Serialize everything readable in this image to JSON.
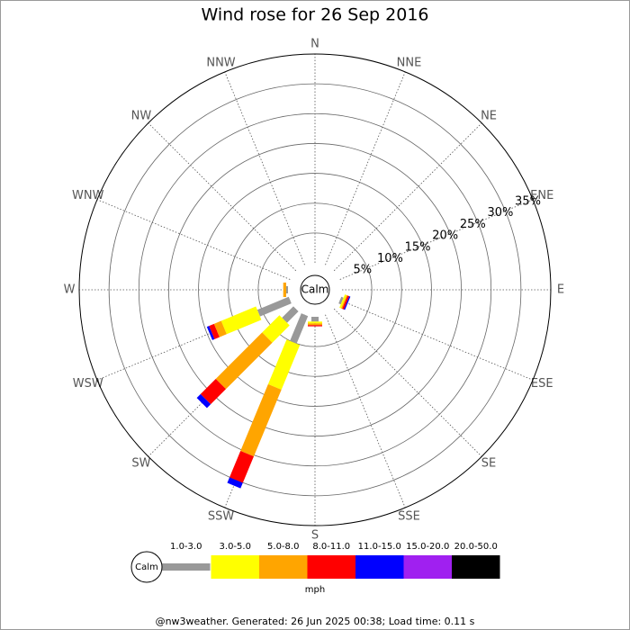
{
  "chart_data": {
    "type": "wind-rose",
    "title": "Wind rose for 26 Sep 2016",
    "directions": [
      "N",
      "NNE",
      "NE",
      "ENE",
      "E",
      "ESE",
      "SE",
      "SSE",
      "S",
      "SSW",
      "SW",
      "WSW",
      "W",
      "WNW",
      "NW",
      "NNW"
    ],
    "calm_label": "Calm",
    "rlim": [
      0,
      35
    ],
    "rticks": [
      {
        "value": 5,
        "label": "5%"
      },
      {
        "value": 10,
        "label": "10%"
      },
      {
        "value": 15,
        "label": "15%"
      },
      {
        "value": 20,
        "label": "20%"
      },
      {
        "value": 25,
        "label": "25%"
      },
      {
        "value": 30,
        "label": "30%"
      },
      {
        "value": 35,
        "label": "35%"
      }
    ],
    "series": [
      {
        "name": "1.0-3.0",
        "color": "#999999",
        "values": [
          0,
          0,
          0,
          0,
          0,
          0.4,
          0,
          0,
          0.8,
          5,
          2.7,
          5.7,
          0.3,
          0,
          0,
          0
        ]
      },
      {
        "name": "3.0-5.0",
        "color": "#ffff00",
        "values": [
          0,
          0,
          0,
          0,
          0,
          0.3,
          0,
          0,
          0.3,
          8.1,
          4.1,
          6.3,
          0,
          0,
          0,
          0
        ]
      },
      {
        "name": "5.0-8.0",
        "color": "#ffa500",
        "values": [
          0,
          0,
          0,
          0,
          0,
          0.2,
          0,
          0,
          0.3,
          12.1,
          11,
          1.3,
          0.5,
          0,
          0,
          0
        ]
      },
      {
        "name": "8.0-11.0",
        "color": "#ff0000",
        "values": [
          0,
          0,
          0,
          0,
          0,
          0.3,
          0,
          0,
          0.2,
          4.8,
          3.6,
          0.9,
          0,
          0,
          0,
          0
        ]
      },
      {
        "name": "11.0-15.0",
        "color": "#0000ff",
        "values": [
          0,
          0,
          0,
          0,
          0,
          0.2,
          0,
          0,
          0,
          1,
          0.9,
          0.4,
          0,
          0,
          0,
          0
        ]
      },
      {
        "name": "15.0-20.0",
        "color": "#a020f0",
        "values": [
          0,
          0,
          0,
          0,
          0,
          0,
          0,
          0,
          0,
          0,
          0,
          0,
          0,
          0,
          0,
          0
        ]
      },
      {
        "name": "20.0-50.0",
        "color": "#000000",
        "values": [
          0,
          0,
          0,
          0,
          0,
          0,
          0,
          0,
          0,
          0,
          0,
          0,
          0,
          0,
          0,
          0
        ]
      }
    ],
    "legend_unit": "mph",
    "footer": "@nw3weather. Generated: 26 Jun 2025 00:38; Load time: 0.11 s"
  }
}
